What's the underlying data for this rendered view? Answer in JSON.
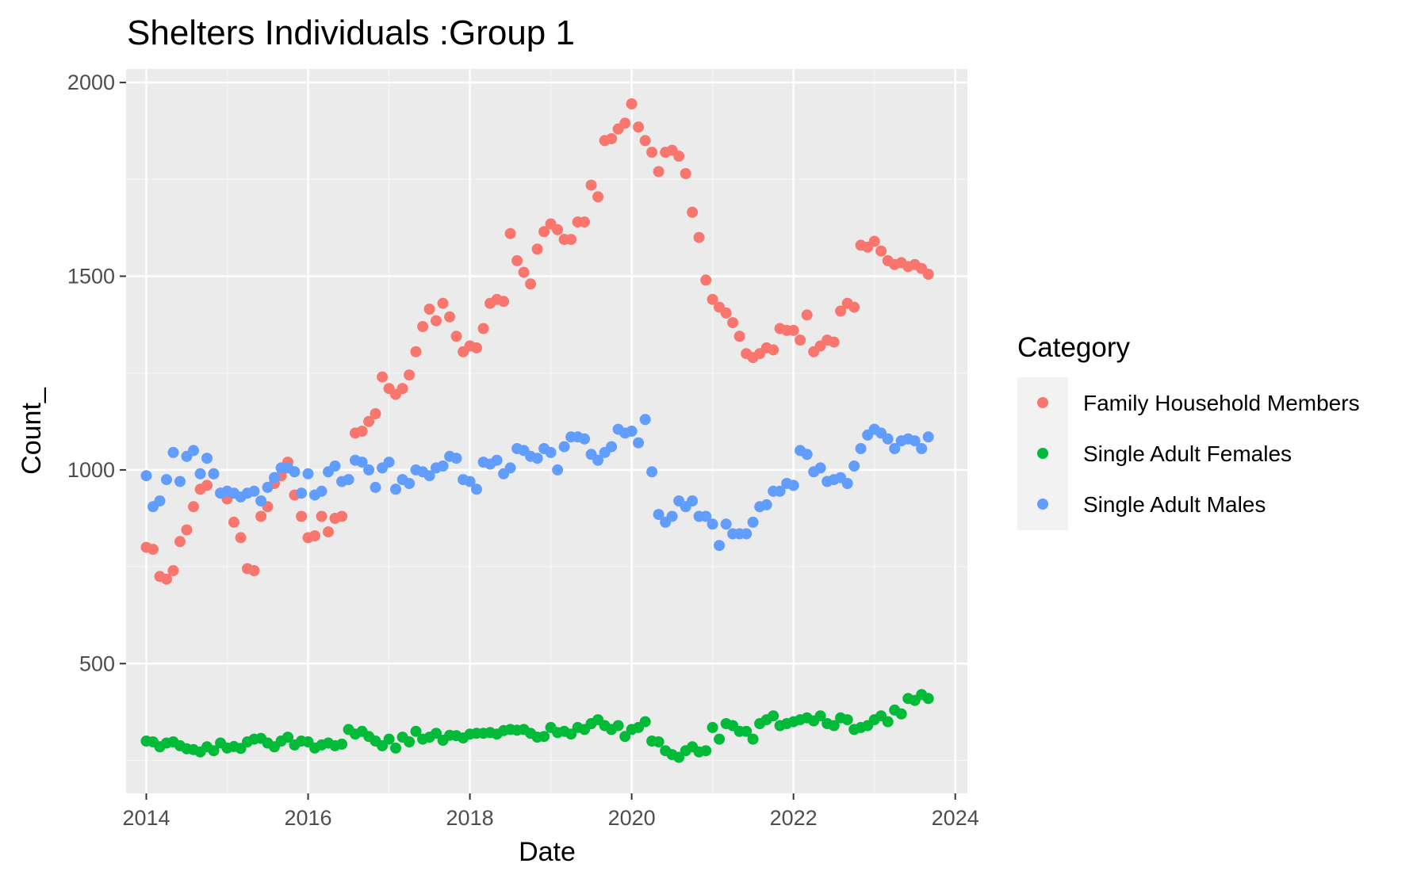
{
  "chart_data": {
    "type": "scatter",
    "title": "Shelters Individuals :Group 1",
    "xlabel": "Date",
    "ylabel": "Count_",
    "xlim": [
      2013.75,
      2024.15
    ],
    "ylim": [
      165,
      2035
    ],
    "x_ticks": [
      2014,
      2016,
      2018,
      2020,
      2022,
      2024
    ],
    "x_tick_labels": [
      "2014",
      "2016",
      "2018",
      "2020",
      "2022",
      "2024"
    ],
    "y_ticks": [
      500,
      1000,
      1500,
      2000
    ],
    "y_tick_labels": [
      "500",
      "1000",
      "1500",
      "2000"
    ],
    "grid": true,
    "legend": {
      "title": "Category",
      "position": "right"
    },
    "series": [
      {
        "name": "Family Household Members",
        "color": "#F8766D",
        "x": [
          2014.0,
          2014.083,
          2014.167,
          2014.25,
          2014.333,
          2014.417,
          2014.5,
          2014.583,
          2014.667,
          2014.75,
          2014.833,
          2014.917,
          2015.0,
          2015.083,
          2015.167,
          2015.25,
          2015.333,
          2015.417,
          2015.5,
          2015.583,
          2015.667,
          2015.75,
          2015.833,
          2015.917,
          2016.0,
          2016.083,
          2016.167,
          2016.25,
          2016.333,
          2016.417,
          2016.5,
          2016.583,
          2016.667,
          2016.75,
          2016.833,
          2016.917,
          2017.0,
          2017.083,
          2017.167,
          2017.25,
          2017.333,
          2017.417,
          2017.5,
          2017.583,
          2017.667,
          2017.75,
          2017.833,
          2017.917,
          2018.0,
          2018.083,
          2018.167,
          2018.25,
          2018.333,
          2018.417,
          2018.5,
          2018.583,
          2018.667,
          2018.75,
          2018.833,
          2018.917,
          2019.0,
          2019.083,
          2019.167,
          2019.25,
          2019.333,
          2019.417,
          2019.5,
          2019.583,
          2019.667,
          2019.75,
          2019.833,
          2019.917,
          2020.0,
          2020.083,
          2020.167,
          2020.25,
          2020.333,
          2020.417,
          2020.5,
          2020.583,
          2020.667,
          2020.75,
          2020.833,
          2020.917,
          2021.0,
          2021.083,
          2021.167,
          2021.25,
          2021.333,
          2021.417,
          2021.5,
          2021.583,
          2021.667,
          2021.75,
          2021.833,
          2021.917,
          2022.0,
          2022.083,
          2022.167,
          2022.25,
          2022.333,
          2022.417,
          2022.5,
          2022.583,
          2022.667,
          2022.75,
          2022.833,
          2022.917,
          2023.0,
          2023.083,
          2023.167,
          2023.25,
          2023.333,
          2023.417,
          2023.5,
          2023.583,
          2023.667
        ],
        "y": [
          800,
          795,
          725,
          718,
          740,
          815,
          845,
          905,
          950,
          960,
          990,
          940,
          925,
          865,
          825,
          745,
          740,
          880,
          905,
          965,
          985,
          1020,
          935,
          880,
          825,
          830,
          880,
          840,
          875,
          880,
          975,
          1095,
          1100,
          1125,
          1145,
          1240,
          1210,
          1195,
          1210,
          1245,
          1305,
          1370,
          1415,
          1385,
          1430,
          1395,
          1345,
          1305,
          1320,
          1315,
          1365,
          1430,
          1440,
          1435,
          1610,
          1540,
          1510,
          1480,
          1570,
          1615,
          1635,
          1620,
          1595,
          1595,
          1640,
          1640,
          1735,
          1705,
          1850,
          1855,
          1880,
          1895,
          1945,
          1885,
          1850,
          1820,
          1770,
          1820,
          1825,
          1810,
          1765,
          1665,
          1600,
          1490,
          1440,
          1420,
          1405,
          1380,
          1345,
          1300,
          1290,
          1300,
          1315,
          1310,
          1365,
          1360,
          1360,
          1335,
          1400,
          1305,
          1320,
          1335,
          1330,
          1410,
          1430,
          1420,
          1580,
          1575,
          1590,
          1565,
          1540,
          1530,
          1535,
          1525,
          1530,
          1520,
          1505
        ]
      },
      {
        "name": "Single Adult Females",
        "color": "#00BA38",
        "x": [
          2014.0,
          2014.083,
          2014.167,
          2014.25,
          2014.333,
          2014.417,
          2014.5,
          2014.583,
          2014.667,
          2014.75,
          2014.833,
          2014.917,
          2015.0,
          2015.083,
          2015.167,
          2015.25,
          2015.333,
          2015.417,
          2015.5,
          2015.583,
          2015.667,
          2015.75,
          2015.833,
          2015.917,
          2016.0,
          2016.083,
          2016.167,
          2016.25,
          2016.333,
          2016.417,
          2016.5,
          2016.583,
          2016.667,
          2016.75,
          2016.833,
          2016.917,
          2017.0,
          2017.083,
          2017.167,
          2017.25,
          2017.333,
          2017.417,
          2017.5,
          2017.583,
          2017.667,
          2017.75,
          2017.833,
          2017.917,
          2018.0,
          2018.083,
          2018.167,
          2018.25,
          2018.333,
          2018.417,
          2018.5,
          2018.583,
          2018.667,
          2018.75,
          2018.833,
          2018.917,
          2019.0,
          2019.083,
          2019.167,
          2019.25,
          2019.333,
          2019.417,
          2019.5,
          2019.583,
          2019.667,
          2019.75,
          2019.833,
          2019.917,
          2020.0,
          2020.083,
          2020.167,
          2020.25,
          2020.333,
          2020.417,
          2020.5,
          2020.583,
          2020.667,
          2020.75,
          2020.833,
          2020.917,
          2021.0,
          2021.083,
          2021.167,
          2021.25,
          2021.333,
          2021.417,
          2021.5,
          2021.583,
          2021.667,
          2021.75,
          2021.833,
          2021.917,
          2022.0,
          2022.083,
          2022.167,
          2022.25,
          2022.333,
          2022.417,
          2022.5,
          2022.583,
          2022.667,
          2022.75,
          2022.833,
          2022.917,
          2023.0,
          2023.083,
          2023.167,
          2023.25,
          2023.333,
          2023.417,
          2023.5,
          2023.583,
          2023.667
        ],
        "y": [
          300,
          298,
          285,
          295,
          298,
          288,
          280,
          278,
          272,
          285,
          275,
          295,
          282,
          286,
          281,
          298,
          305,
          307,
          295,
          285,
          300,
          310,
          290,
          300,
          298,
          282,
          290,
          295,
          288,
          292,
          330,
          318,
          325,
          312,
          300,
          288,
          305,
          282,
          310,
          298,
          325,
          305,
          310,
          320,
          302,
          315,
          314,
          308,
          318,
          320,
          320,
          322,
          318,
          327,
          330,
          328,
          330,
          320,
          310,
          312,
          335,
          322,
          325,
          318,
          335,
          330,
          345,
          355,
          340,
          330,
          340,
          312,
          330,
          335,
          350,
          300,
          298,
          275,
          265,
          258,
          275,
          285,
          272,
          275,
          335,
          305,
          345,
          340,
          325,
          325,
          305,
          345,
          355,
          365,
          340,
          345,
          350,
          355,
          360,
          352,
          365,
          345,
          340,
          360,
          355,
          330,
          335,
          340,
          355,
          365,
          350,
          380,
          370,
          410,
          405,
          420,
          410
        ]
      },
      {
        "name": "Single Adult Males",
        "color": "#619CFF",
        "x": [
          2014.0,
          2014.083,
          2014.167,
          2014.25,
          2014.333,
          2014.417,
          2014.5,
          2014.583,
          2014.667,
          2014.75,
          2014.833,
          2014.917,
          2015.0,
          2015.083,
          2015.167,
          2015.25,
          2015.333,
          2015.417,
          2015.5,
          2015.583,
          2015.667,
          2015.75,
          2015.833,
          2015.917,
          2016.0,
          2016.083,
          2016.167,
          2016.25,
          2016.333,
          2016.417,
          2016.5,
          2016.583,
          2016.667,
          2016.75,
          2016.833,
          2016.917,
          2017.0,
          2017.083,
          2017.167,
          2017.25,
          2017.333,
          2017.417,
          2017.5,
          2017.583,
          2017.667,
          2017.75,
          2017.833,
          2017.917,
          2018.0,
          2018.083,
          2018.167,
          2018.25,
          2018.333,
          2018.417,
          2018.5,
          2018.583,
          2018.667,
          2018.75,
          2018.833,
          2018.917,
          2019.0,
          2019.083,
          2019.167,
          2019.25,
          2019.333,
          2019.417,
          2019.5,
          2019.583,
          2019.667,
          2019.75,
          2019.833,
          2019.917,
          2020.0,
          2020.083,
          2020.167,
          2020.25,
          2020.333,
          2020.417,
          2020.5,
          2020.583,
          2020.667,
          2020.75,
          2020.833,
          2020.917,
          2021.0,
          2021.083,
          2021.167,
          2021.25,
          2021.333,
          2021.417,
          2021.5,
          2021.583,
          2021.667,
          2021.75,
          2021.833,
          2021.917,
          2022.0,
          2022.083,
          2022.167,
          2022.25,
          2022.333,
          2022.417,
          2022.5,
          2022.583,
          2022.667,
          2022.75,
          2022.833,
          2022.917,
          2023.0,
          2023.083,
          2023.167,
          2023.25,
          2023.333,
          2023.417,
          2023.5,
          2023.583,
          2023.667
        ],
        "y": [
          985,
          905,
          920,
          975,
          1045,
          970,
          1035,
          1050,
          990,
          1030,
          990,
          940,
          945,
          940,
          930,
          940,
          945,
          920,
          955,
          980,
          1005,
          1005,
          995,
          940,
          990,
          935,
          945,
          995,
          1010,
          970,
          975,
          1025,
          1020,
          1000,
          955,
          1005,
          1020,
          950,
          975,
          965,
          1000,
          995,
          985,
          1005,
          1010,
          1035,
          1030,
          975,
          970,
          950,
          1020,
          1015,
          1025,
          990,
          1005,
          1055,
          1050,
          1035,
          1030,
          1055,
          1045,
          1000,
          1060,
          1085,
          1085,
          1080,
          1040,
          1025,
          1045,
          1060,
          1105,
          1095,
          1100,
          1070,
          1130,
          995,
          885,
          865,
          880,
          920,
          905,
          920,
          880,
          880,
          860,
          805,
          860,
          835,
          835,
          835,
          865,
          905,
          910,
          945,
          945,
          965,
          960,
          1050,
          1040,
          995,
          1005,
          970,
          975,
          980,
          965,
          1010,
          1055,
          1090,
          1105,
          1095,
          1080,
          1055,
          1075,
          1080,
          1075,
          1055,
          1085
        ]
      }
    ]
  }
}
